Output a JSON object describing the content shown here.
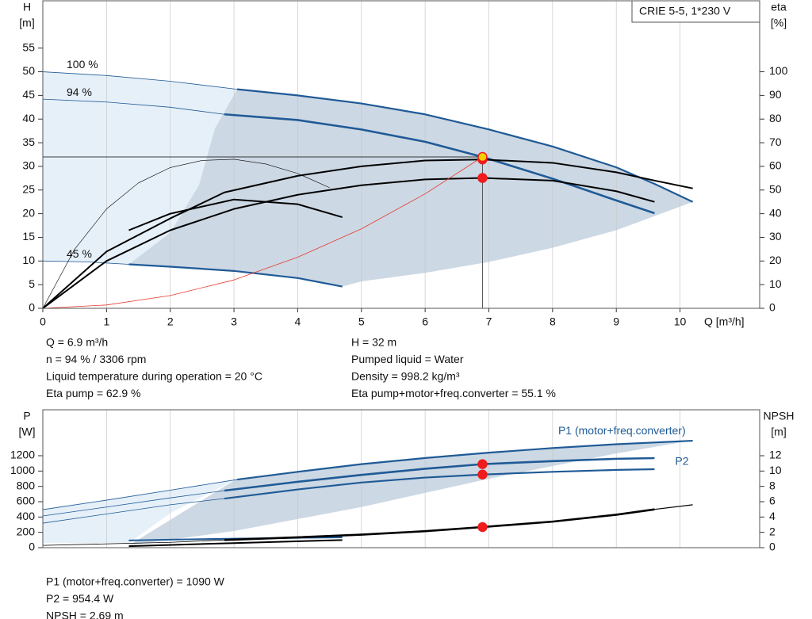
{
  "chart_data": [
    {
      "type": "line",
      "title": "CRIE 5-5, 1*230 V",
      "x_label": "Q [m³/h]",
      "y_label": [
        "H",
        "[m]"
      ],
      "y2_label": [
        "eta",
        "[%]"
      ],
      "xlim": [
        0,
        11.25
      ],
      "xticks": [
        0,
        1,
        2,
        3,
        4,
        5,
        6,
        7,
        8,
        9,
        10
      ],
      "ylim": [
        0,
        65
      ],
      "yticks": [
        0,
        5,
        10,
        15,
        20,
        25,
        30,
        35,
        40,
        45,
        50,
        55
      ],
      "y2lim": [
        0,
        130
      ],
      "y2ticks": [
        0,
        10,
        20,
        30,
        40,
        50,
        60,
        70,
        80,
        90,
        100
      ],
      "grid": "x",
      "x_tick_labels": true,
      "areas": [
        {
          "color": "#e6f0f9",
          "x": [
            0,
            1,
            2,
            3.05,
            2.7,
            2.45,
            2,
            1.35,
            0.7,
            0
          ],
          "values": [
            50,
            49.2,
            48,
            46.3,
            38,
            26,
            16,
            9.3,
            9.8,
            10
          ]
        },
        {
          "color": "#ccd8e4",
          "x": [
            3.05,
            4,
            5,
            6,
            7,
            8,
            9,
            10.2,
            9,
            8,
            7,
            6,
            5,
            4.7,
            4,
            3,
            2,
            1.35,
            2,
            2.45,
            2.7
          ],
          "values": [
            46.3,
            45,
            43.3,
            41,
            37.8,
            34.2,
            29.8,
            22.5,
            16.5,
            12.8,
            9.8,
            7.5,
            5.7,
            4.6,
            6.4,
            7.9,
            8.8,
            9.3,
            16,
            26,
            38
          ]
        }
      ],
      "series": [
        {
          "name": "100 %",
          "label_position": "start",
          "color": "#1f5a96",
          "width": 0.8,
          "x": [
            0,
            1,
            2,
            3.05
          ],
          "values": [
            50,
            49.2,
            48,
            46.3
          ]
        },
        {
          "color": "#1f5a96",
          "width": 2.2,
          "x": [
            3.05,
            4,
            5,
            6,
            7,
            8,
            9,
            9.6,
            10.2
          ],
          "values": [
            46.3,
            45,
            43.3,
            41,
            37.8,
            34.2,
            29.8,
            26.3,
            22.5
          ]
        },
        {
          "name": "94 %",
          "label_position": "start",
          "color": "#1f5a96",
          "width": 0.8,
          "x": [
            0,
            1,
            2,
            2.85
          ],
          "values": [
            44.2,
            43.6,
            42.5,
            41
          ]
        },
        {
          "color": "#1f5a96",
          "width": 2.6,
          "x": [
            2.85,
            4,
            5,
            6,
            6.9,
            8,
            9,
            9.6
          ],
          "values": [
            41,
            39.8,
            37.8,
            35.2,
            32,
            27.4,
            22.8,
            20.1
          ]
        },
        {
          "name": "45 %",
          "label_position": "start",
          "color": "#1f5a96",
          "width": 0.8,
          "x": [
            0,
            0.7,
            1.35
          ],
          "values": [
            10,
            9.8,
            9.3
          ]
        },
        {
          "color": "#1f5a96",
          "width": 2.2,
          "x": [
            1.35,
            2,
            3,
            4,
            4.7
          ],
          "values": [
            9.3,
            8.8,
            7.9,
            6.4,
            4.6
          ]
        },
        {
          "axis": "y2",
          "color": "#000000",
          "width": 2,
          "x": [
            0,
            1,
            2,
            2.85,
            4,
            5,
            6,
            6.9,
            8,
            9,
            9.6,
            10.2
          ],
          "values": [
            0,
            24,
            38,
            49,
            56,
            60,
            62.5,
            62.9,
            61.5,
            57.5,
            54,
            50.7
          ]
        },
        {
          "axis": "y2",
          "color": "#000000",
          "width": 2,
          "x": [
            0,
            1,
            2,
            3,
            4,
            5,
            6,
            6.9,
            8,
            9,
            9.6
          ],
          "values": [
            0,
            20,
            33,
            42,
            48,
            52,
            54.5,
            55.1,
            54,
            49.5,
            45
          ]
        },
        {
          "axis": "y2",
          "color": "#000000",
          "width": 0.6,
          "x": [
            0,
            0.5,
            1,
            1.5,
            2,
            2.5,
            3,
            3.5,
            4,
            4.5
          ],
          "values": [
            0,
            25,
            42,
            53,
            59.5,
            62.5,
            63,
            61,
            57,
            51
          ]
        },
        {
          "axis": "y2",
          "color": "#000000",
          "width": 2,
          "x": [
            1.35,
            2,
            3,
            4,
            4.7
          ],
          "values": [
            33,
            40,
            46,
            44,
            38.5
          ]
        },
        {
          "color": "#e8392b",
          "width": 0.8,
          "x": [
            0,
            1,
            2,
            3,
            4,
            5,
            6,
            6.9
          ],
          "values": [
            0,
            0.7,
            2.7,
            6,
            10.8,
            16.8,
            24.2,
            32
          ]
        }
      ],
      "duty_point": {
        "x": 6.9,
        "y": 32
      },
      "markers": [
        {
          "x": 6.9,
          "value": 62.9,
          "axis": "y2",
          "fill": "#ee1c1c",
          "stroke": "#ee1c1c"
        },
        {
          "x": 6.9,
          "value": 32,
          "fill": "#f5d000",
          "stroke": "#ee1c1c"
        },
        {
          "x": 6.9,
          "value": 55.1,
          "axis": "y2",
          "fill": "#ee1c1c",
          "stroke": "#ee1c1c"
        }
      ],
      "readout": {
        "left": [
          "Q = 6.9 m³/h",
          "n = 94 % / 3306 rpm",
          "Liquid temperature during operation = 20 °C",
          "Eta pump = 62.9 %"
        ],
        "right": [
          "H = 32 m",
          "Pumped liquid = Water",
          "Density = 998.2 kg/m³",
          "Eta pump+motor+freq.converter = 55.1 %"
        ]
      }
    },
    {
      "type": "line",
      "y_label": [
        "P",
        "[W]"
      ],
      "y2_label": [
        "NPSH",
        "[m]"
      ],
      "xlim": [
        0,
        11.25
      ],
      "xticks": [
        0,
        1,
        2,
        3,
        4,
        5,
        6,
        7,
        8,
        9,
        10
      ],
      "x_tick_labels": false,
      "ylim": [
        0,
        1800
      ],
      "yticks": [
        0,
        200,
        400,
        600,
        800,
        1000,
        1200
      ],
      "y2lim": [
        0,
        18
      ],
      "y2ticks": [
        0,
        2,
        4,
        6,
        8,
        10,
        12
      ],
      "grid": "x",
      "areas": [
        {
          "color": "#e6f0f9",
          "x": [
            0,
            1,
            2,
            3.05,
            2,
            1.35,
            0
          ],
          "values": [
            510,
            630,
            760,
            900,
            450,
            60,
            60
          ]
        },
        {
          "color": "#ccd8e4",
          "x": [
            3.05,
            4,
            5,
            6,
            7,
            8,
            9,
            10.2,
            9,
            7,
            5,
            3,
            1.35
          ],
          "values": [
            900,
            1000,
            1090,
            1170,
            1240,
            1300,
            1350,
            1400,
            1230,
            900,
            530,
            217,
            30
          ]
        }
      ],
      "series": [
        {
          "color": "#1f5a96",
          "width": 0.8,
          "x": [
            0,
            1,
            2,
            3.05
          ],
          "values": [
            496,
            620,
            750,
            889
          ]
        },
        {
          "name": "P1 (motor+freq.converter)",
          "label_position": "end",
          "color": "#1f5a96",
          "width": 2.2,
          "x": [
            3.05,
            4,
            5,
            6,
            7,
            8,
            9,
            10.2
          ],
          "values": [
            889,
            990,
            1090,
            1170,
            1240,
            1300,
            1350,
            1396
          ]
        },
        {
          "color": "#1f5a96",
          "width": 0.8,
          "x": [
            0,
            1,
            2,
            2.85
          ],
          "values": [
            414,
            530,
            650,
            745
          ]
        },
        {
          "color": "#1f5a96",
          "width": 2.6,
          "x": [
            2.85,
            4,
            5,
            6,
            6.9,
            8,
            9,
            9.6
          ],
          "values": [
            745,
            860,
            950,
            1030,
            1090,
            1130,
            1160,
            1169
          ]
        },
        {
          "color": "#1f5a96",
          "width": 0.8,
          "x": [
            0,
            1,
            2,
            2.85
          ],
          "values": [
            320,
            440,
            560,
            641
          ]
        },
        {
          "name": "P2",
          "label_position": "end-right",
          "color": "#1f5a96",
          "width": 2.2,
          "x": [
            2.85,
            4,
            5,
            6,
            6.9,
            8,
            9,
            9.6
          ],
          "values": [
            641,
            760,
            850,
            915,
            954.4,
            990,
            1015,
            1024
          ]
        },
        {
          "color": "#1f5a96",
          "width": 2,
          "x": [
            1.35,
            2,
            3,
            4,
            4.7
          ],
          "values": [
            95,
            105,
            118,
            128,
            135
          ]
        },
        {
          "axis": "y2",
          "color": "#000000",
          "width": 0.8,
          "x": [
            0,
            2,
            2.85
          ],
          "values": [
            0.3,
            0.7,
            1
          ]
        },
        {
          "axis": "y2",
          "color": "#000000",
          "width": 2.6,
          "x": [
            2.85,
            4,
            5,
            6,
            6.9,
            8,
            9,
            9.6
          ],
          "values": [
            1,
            1.35,
            1.7,
            2.15,
            2.69,
            3.4,
            4.3,
            5
          ]
        },
        {
          "axis": "y2",
          "color": "#000000",
          "width": 1.2,
          "x": [
            9.6,
            10.2
          ],
          "values": [
            5,
            5.6
          ]
        },
        {
          "axis": "y2",
          "color": "#000000",
          "width": 2,
          "x": [
            1.35,
            3,
            4.7
          ],
          "values": [
            0.2,
            0.6,
            1
          ]
        }
      ],
      "markers": [
        {
          "x": 6.9,
          "value": 1090,
          "fill": "#ee1c1c",
          "stroke": "#ee1c1c"
        },
        {
          "x": 6.9,
          "value": 954.4,
          "fill": "#ee1c1c",
          "stroke": "#ee1c1c"
        },
        {
          "x": 6.9,
          "value": 2.69,
          "axis": "y2",
          "fill": "#ee1c1c",
          "stroke": "#ee1c1c"
        }
      ],
      "readout": {
        "left": [
          "P1 (motor+freq.converter) = 1090 W",
          "P2 = 954.4 W",
          "NPSH = 2.69 m"
        ]
      }
    }
  ]
}
